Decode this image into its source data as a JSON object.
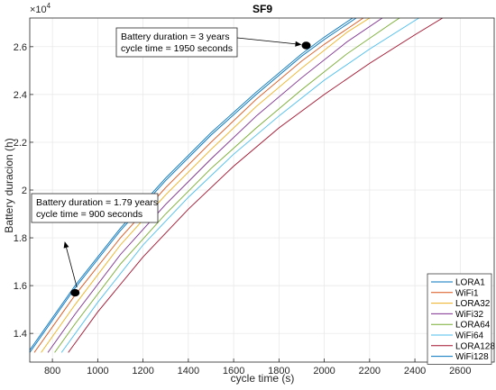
{
  "chart_data": {
    "type": "line",
    "title": "SF9",
    "xlabel": "cycle time (s)",
    "ylabel": "Battery duracion (h)",
    "y_exponent_label": "×10",
    "y_exponent_power": "4",
    "xlim": [
      700,
      2750
    ],
    "ylim": [
      12800,
      27200
    ],
    "x_ticks": [
      800,
      1000,
      1200,
      1400,
      1600,
      1800,
      2000,
      2200,
      2400,
      2600
    ],
    "y_ticks": [
      1.4,
      1.6,
      1.8,
      2.0,
      2.2,
      2.4,
      2.6
    ],
    "y_tick_labels": [
      "1.4",
      "1.6",
      "1.8",
      "2",
      "2.2",
      "2.4",
      "2.6"
    ],
    "grid": true,
    "legend_placement": "bottom-right",
    "series": [
      {
        "name": "LORA1",
        "color": "#0072BD",
        "x": [
          700,
          900,
          1100,
          1300,
          1500,
          1700,
          1900,
          2000,
          2500
        ],
        "y": [
          13200,
          15900,
          18300,
          20400,
          22300,
          24000,
          25600,
          26300,
          29500
        ]
      },
      {
        "name": "WiFi1",
        "color": "#D95319",
        "x": [
          720,
          900,
          1100,
          1300,
          1500,
          1700,
          1900,
          2000,
          2500
        ],
        "y": [
          13200,
          15600,
          18000,
          20100,
          22000,
          23800,
          25400,
          26100,
          29300
        ]
      },
      {
        "name": "LORA32",
        "color": "#EDB120",
        "x": [
          750,
          900,
          1100,
          1300,
          1500,
          1700,
          1900,
          2100,
          2500
        ],
        "y": [
          13200,
          15200,
          17700,
          19800,
          21700,
          23500,
          25100,
          26600,
          29000
        ]
      },
      {
        "name": "WiFi32",
        "color": "#7E2F8E",
        "x": [
          780,
          900,
          1100,
          1300,
          1500,
          1700,
          1900,
          2100,
          2600
        ],
        "y": [
          13200,
          14800,
          17300,
          19400,
          21300,
          23100,
          24700,
          26200,
          29400
        ]
      },
      {
        "name": "LORA64",
        "color": "#77AC30",
        "x": [
          810,
          900,
          1100,
          1300,
          1500,
          1700,
          1900,
          2100,
          2300,
          2700
        ],
        "y": [
          13200,
          14400,
          16900,
          19000,
          20900,
          22600,
          24200,
          25700,
          27000,
          29500
        ]
      },
      {
        "name": "WiFi64",
        "color": "#4DBEEE",
        "x": [
          840,
          1000,
          1200,
          1400,
          1600,
          1800,
          2000,
          2200,
          2400,
          2800
        ],
        "y": [
          13200,
          15300,
          17700,
          19700,
          21500,
          23100,
          24600,
          25900,
          27100,
          29400
        ]
      },
      {
        "name": "LORA128",
        "color": "#A2142F",
        "x": [
          870,
          1000,
          1200,
          1400,
          1600,
          1800,
          2000,
          2200,
          2400,
          2800
        ],
        "y": [
          13200,
          14900,
          17200,
          19200,
          21000,
          22600,
          24000,
          25300,
          26500,
          28800
        ]
      },
      {
        "name": "WiFi128",
        "color": "#0072BD",
        "x": [
          700,
          900,
          1100,
          1300,
          1500,
          1700,
          1900,
          2000,
          2500
        ],
        "y": [
          13300,
          16000,
          18400,
          20500,
          22400,
          24100,
          25700,
          26400,
          29600
        ]
      }
    ],
    "points": [
      {
        "x": 900,
        "y": 15700
      },
      {
        "x": 1920,
        "y": 26050
      }
    ],
    "annotations": [
      {
        "line1": "Battery duration = 3 years",
        "line2": "cycle time = 1950 seconds",
        "arrow_to": {
          "x": 1920,
          "y": 26050
        }
      },
      {
        "line1": "Battery duration = 1.79 years",
        "line2": "cycle time = 900 seconds",
        "arrow_to": {
          "x": 890,
          "y": 18300
        }
      }
    ]
  }
}
